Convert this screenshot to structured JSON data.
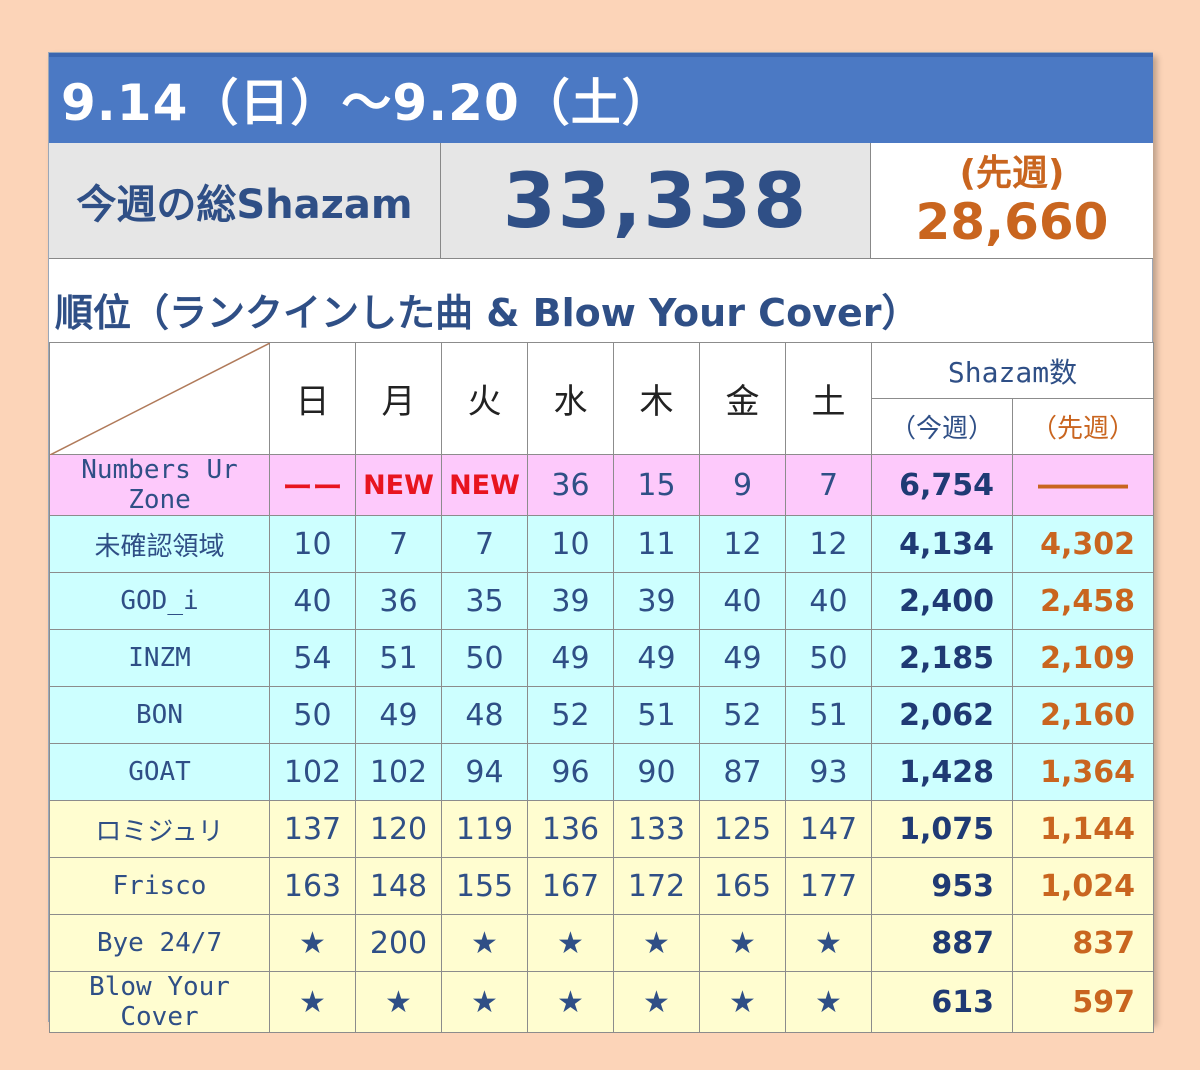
{
  "header": {
    "date_range": "9.14（日）〜9.20（土）"
  },
  "summary": {
    "total_label": "今週の総Shazam",
    "total_value": "33,338",
    "prev_label": "(先週)",
    "prev_value": "28,660"
  },
  "ranking": {
    "heading": "順位（ランクインした曲 & Blow Your Cover）",
    "days": [
      "日",
      "月",
      "火",
      "水",
      "木",
      "金",
      "土"
    ],
    "shazam_header": "Shazam数",
    "this_week_label": "（今週）",
    "last_week_label": "（先週）",
    "rows": [
      {
        "name": "Numbers Ur Zone",
        "days": [
          "ーー",
          "NEW",
          "NEW",
          "36",
          "15",
          "9",
          "7"
        ],
        "this_week": "6,754",
        "last_week": "―――"
      },
      {
        "name": "未確認領域",
        "days": [
          "10",
          "7",
          "7",
          "10",
          "11",
          "12",
          "12"
        ],
        "this_week": "4,134",
        "last_week": "4,302"
      },
      {
        "name": "GOD_i",
        "days": [
          "40",
          "36",
          "35",
          "39",
          "39",
          "40",
          "40"
        ],
        "this_week": "2,400",
        "last_week": "2,458"
      },
      {
        "name": "INZM",
        "days": [
          "54",
          "51",
          "50",
          "49",
          "49",
          "49",
          "50"
        ],
        "this_week": "2,185",
        "last_week": "2,109"
      },
      {
        "name": "BON",
        "days": [
          "50",
          "49",
          "48",
          "52",
          "51",
          "52",
          "51"
        ],
        "this_week": "2,062",
        "last_week": "2,160"
      },
      {
        "name": "GOAT",
        "days": [
          "102",
          "102",
          "94",
          "96",
          "90",
          "87",
          "93"
        ],
        "this_week": "1,428",
        "last_week": "1,364"
      },
      {
        "name": "ロミジュリ",
        "days": [
          "137",
          "120",
          "119",
          "136",
          "133",
          "125",
          "147"
        ],
        "this_week": "1,075",
        "last_week": "1,144"
      },
      {
        "name": "Frisco",
        "days": [
          "163",
          "148",
          "155",
          "167",
          "172",
          "165",
          "177"
        ],
        "this_week": "953",
        "last_week": "1,024"
      },
      {
        "name": "Bye 24/7",
        "days": [
          "★",
          "200",
          "★",
          "★",
          "★",
          "★",
          "★"
        ],
        "this_week": "887",
        "last_week": "837"
      },
      {
        "name": "Blow Your Cover",
        "days": [
          "★",
          "★",
          "★",
          "★",
          "★",
          "★",
          "★"
        ],
        "this_week": "613",
        "last_week": "597"
      }
    ]
  },
  "colors": {
    "page_bg": "#fcd4b8",
    "title_bar": "#4b79c4",
    "navy_text": "#2f4f86",
    "orange_text": "#c9651f",
    "red_text": "#e8141f",
    "row_pink": "#fdc9fb",
    "row_cyan": "#cdffff",
    "row_yellow": "#fffdd0"
  }
}
